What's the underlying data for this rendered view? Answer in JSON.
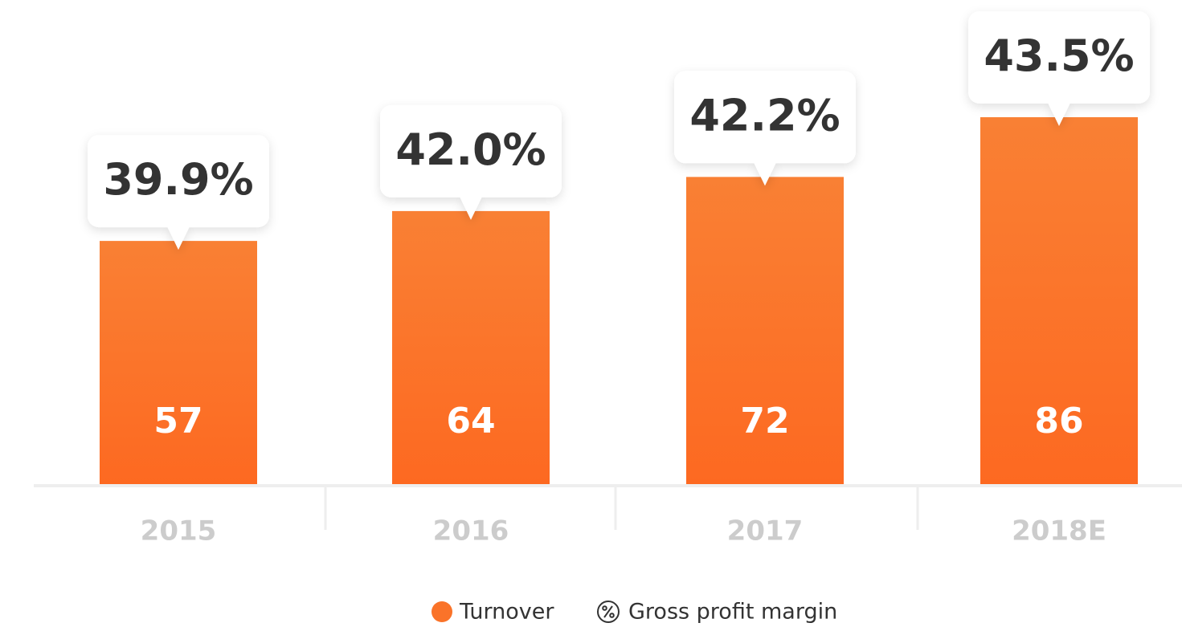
{
  "chart_data": {
    "type": "bar",
    "categories": [
      "2015",
      "2016",
      "2017",
      "2018E"
    ],
    "series": [
      {
        "name": "Turnover",
        "color": "#fa7329",
        "values": [
          57,
          64,
          72,
          86
        ]
      },
      {
        "name": "Gross profit margin",
        "color": "#ffffff",
        "values": [
          39.9,
          42.0,
          42.2,
          43.5
        ],
        "value_labels": [
          "39.9%",
          "42.0%",
          "42.2%",
          "43.5%"
        ]
      }
    ]
  }
}
